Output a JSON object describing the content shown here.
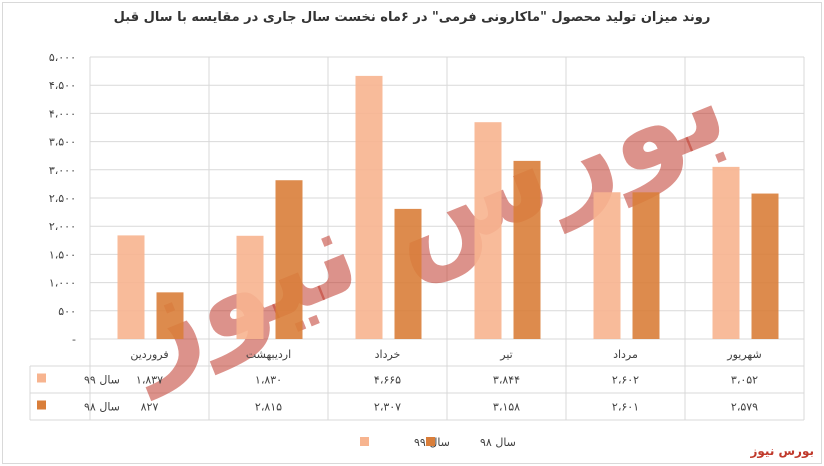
{
  "colors": {
    "series99": "#f7b48f",
    "series98": "#d97e3a",
    "grid": "#d9d9d9",
    "text": "#404040",
    "watermark": "#c0392b",
    "brand": "#c0392b"
  },
  "watermark_text": "بورس نیوز",
  "brand_text": "بورس نیوز",
  "chart_data": {
    "type": "bar",
    "title": "روند میزان تولید محصول \"ماکارونی فرمی\" در ۶ماه نخست سال جاری در مقایسه با سال قبل",
    "categories": [
      "فروردین",
      "اردیبهشت",
      "خرداد",
      "تیر",
      "مرداد",
      "شهریور"
    ],
    "series": [
      {
        "name": "سال ۹۹",
        "values": [
          1837,
          1830,
          4665,
          3844,
          2602,
          3052
        ],
        "labels": [
          "۱،۸۳۷",
          "۱،۸۳۰",
          "۴،۶۶۵",
          "۳،۸۴۴",
          "۲،۶۰۲",
          "۳،۰۵۲"
        ]
      },
      {
        "name": "سال ۹۸",
        "values": [
          827,
          2815,
          2307,
          3158,
          2601,
          2579
        ],
        "labels": [
          "۸۲۷",
          "۲،۸۱۵",
          "۲،۳۰۷",
          "۳،۱۵۸",
          "۲،۶۰۱",
          "۲،۵۷۹"
        ]
      }
    ],
    "yticks": [
      "-",
      "۵۰۰",
      "۱،۰۰۰",
      "۱،۵۰۰",
      "۲،۰۰۰",
      "۲،۵۰۰",
      "۳،۰۰۰",
      "۳،۵۰۰",
      "۴،۰۰۰",
      "۴،۵۰۰",
      "۵،۰۰۰"
    ],
    "ylim": [
      0,
      5000
    ],
    "grid": true,
    "legend": "bottom",
    "data_table": true
  }
}
